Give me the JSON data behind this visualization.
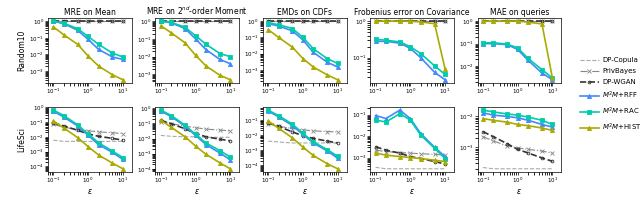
{
  "col_titles_display": [
    "MRE on Mean",
    "MRE on $2^{nd}$-order Moment",
    "EMDs on CDFs",
    "Frobenius error on Covariance",
    "MAE on queries"
  ],
  "col_keys": [
    "MRE on Mean",
    "MRE on 2nd-order Moment",
    "EMDs on CDFs",
    "Frobenius error on Covariance",
    "MAE on queries"
  ],
  "row_labels": [
    "Random10",
    "LifeSci"
  ],
  "legend_entries": [
    "DP-Copula",
    "PrivBayes",
    "DP-WGAN",
    "$M^2M$+RFF",
    "$M^2M$+RAC",
    "$M^2M$+HIST"
  ],
  "line_colors": [
    "#aaaaaa",
    "#888888",
    "#333333",
    "#4488ff",
    "#00ccaa",
    "#aaaa00"
  ],
  "line_styles_base": [
    "--",
    "-.",
    "--",
    "-",
    "-",
    "-"
  ],
  "actual_markers": [
    null,
    "x",
    "o",
    "^",
    "s",
    "^"
  ],
  "marker_sizes": [
    3,
    3,
    2,
    3,
    3,
    3
  ],
  "line_widths": [
    0.8,
    0.8,
    1.2,
    1.2,
    1.2,
    1.2
  ],
  "xlabel": "$\\varepsilon$",
  "eps_values": [
    0.1,
    0.2,
    0.5,
    1.0,
    2.0,
    5.0,
    10.0
  ],
  "data": {
    "Random10": {
      "MRE on Mean": {
        "DP-Copula": [
          1.0,
          1.0,
          1.0,
          1.0,
          1.0,
          1.0,
          1.0
        ],
        "PrivBayes": [
          1.0,
          1.0,
          1.0,
          1.0,
          1.0,
          1.0,
          1.0
        ],
        "DP-WGAN": [
          1.0,
          1.0,
          1.0,
          1.0,
          1.0,
          1.0,
          1.0
        ],
        "M2M+RFF": [
          1.0,
          0.7,
          0.28,
          0.08,
          0.02,
          0.007,
          0.005
        ],
        "M2M+RAC": [
          1.0,
          0.75,
          0.35,
          0.12,
          0.04,
          0.012,
          0.007
        ],
        "M2M+HIST": [
          0.45,
          0.15,
          0.04,
          0.008,
          0.002,
          0.0006,
          0.0003
        ]
      },
      "MRE on 2nd-order Moment": {
        "DP-Copula": [
          1.0,
          1.0,
          1.0,
          1.0,
          1.0,
          1.0,
          1.0
        ],
        "PrivBayes": [
          1.0,
          1.0,
          1.0,
          1.0,
          1.0,
          1.0,
          1.0
        ],
        "DP-WGAN": [
          1.0,
          1.0,
          1.0,
          1.0,
          1.0,
          1.0,
          1.0
        ],
        "M2M+RFF": [
          1.0,
          0.8,
          0.38,
          0.1,
          0.025,
          0.007,
          0.004
        ],
        "M2M+RAC": [
          1.0,
          0.85,
          0.45,
          0.15,
          0.05,
          0.015,
          0.01
        ],
        "M2M+HIST": [
          0.55,
          0.22,
          0.06,
          0.012,
          0.003,
          0.0009,
          0.0005
        ]
      },
      "EMDs on CDFs": {
        "DP-Copula": [
          1.0,
          1.0,
          1.0,
          1.0,
          1.0,
          1.0,
          1.0
        ],
        "PrivBayes": [
          1.0,
          1.0,
          1.0,
          1.0,
          1.0,
          1.0,
          1.0
        ],
        "DP-WGAN": [
          1.0,
          1.0,
          1.0,
          1.0,
          1.0,
          1.0,
          1.0
        ],
        "M2M+RFF": [
          0.7,
          0.5,
          0.25,
          0.07,
          0.012,
          0.003,
          0.0015
        ],
        "M2M+RAC": [
          0.8,
          0.6,
          0.35,
          0.1,
          0.02,
          0.005,
          0.0025
        ],
        "M2M+HIST": [
          0.3,
          0.1,
          0.025,
          0.005,
          0.0015,
          0.0005,
          0.00025
        ]
      },
      "Frobenius error on Covariance": {
        "DP-Copula": [
          1.0,
          1.0,
          1.0,
          1.0,
          1.0,
          1.0,
          1.0
        ],
        "PrivBayes": [
          1.0,
          1.0,
          1.0,
          1.0,
          1.0,
          1.0,
          1.0
        ],
        "DP-WGAN": [
          1.0,
          1.0,
          1.0,
          1.0,
          1.0,
          1.0,
          1.0
        ],
        "M2M+RFF": [
          0.28,
          0.28,
          0.25,
          0.18,
          0.1,
          0.04,
          0.025
        ],
        "M2M+RAC": [
          0.32,
          0.3,
          0.27,
          0.2,
          0.13,
          0.06,
          0.035
        ],
        "M2M+HIST": [
          1.0,
          1.0,
          1.0,
          1.0,
          0.95,
          0.85,
          0.05
        ]
      },
      "MAE on queries": {
        "DP-Copula": [
          1.0,
          1.0,
          1.0,
          1.0,
          1.0,
          1.0,
          1.0
        ],
        "PrivBayes": [
          1.0,
          1.0,
          1.0,
          1.0,
          1.0,
          1.0,
          1.0
        ],
        "DP-WGAN": [
          1.0,
          1.0,
          1.0,
          1.0,
          1.0,
          1.0,
          1.0
        ],
        "M2M+RFF": [
          0.1,
          0.1,
          0.09,
          0.055,
          0.018,
          0.005,
          0.0025
        ],
        "M2M+RAC": [
          0.11,
          0.11,
          0.095,
          0.065,
          0.022,
          0.007,
          0.003
        ],
        "M2M+HIST": [
          1.0,
          1.0,
          1.0,
          1.0,
          0.9,
          0.75,
          0.003
        ]
      }
    },
    "LifeSci": {
      "MRE on Mean": {
        "DP-Copula": [
          0.006,
          0.005,
          0.005,
          0.005,
          0.005,
          0.005,
          0.005
        ],
        "PrivBayes": [
          0.07,
          0.045,
          0.032,
          0.026,
          0.022,
          0.019,
          0.017
        ],
        "DP-WGAN": [
          0.09,
          0.055,
          0.028,
          0.016,
          0.011,
          0.008,
          0.006
        ],
        "M2M+RFF": [
          0.55,
          0.22,
          0.055,
          0.013,
          0.003,
          0.0009,
          0.0003
        ],
        "M2M+RAC": [
          0.65,
          0.28,
          0.065,
          0.016,
          0.004,
          0.0011,
          0.0004
        ],
        "M2M+HIST": [
          0.12,
          0.04,
          0.009,
          0.0022,
          0.0006,
          0.00017,
          7e-05
        ]
      },
      "MRE on 2nd-order Moment": {
        "DP-Copula": [
          0.016,
          0.014,
          0.013,
          0.013,
          0.012,
          0.012,
          0.012
        ],
        "PrivBayes": [
          0.13,
          0.095,
          0.065,
          0.052,
          0.042,
          0.036,
          0.032
        ],
        "DP-WGAN": [
          0.16,
          0.095,
          0.044,
          0.022,
          0.013,
          0.009,
          0.007
        ],
        "M2M+RFF": [
          0.65,
          0.28,
          0.065,
          0.016,
          0.004,
          0.0011,
          0.0004
        ],
        "M2M+RAC": [
          0.75,
          0.33,
          0.075,
          0.019,
          0.005,
          0.0016,
          0.0006
        ],
        "M2M+HIST": [
          0.16,
          0.055,
          0.013,
          0.0032,
          0.0009,
          0.00025,
          0.0001
        ]
      },
      "EMDs on CDFs": {
        "DP-Copula": [
          0.004,
          0.0035,
          0.003,
          0.003,
          0.003,
          0.003,
          0.003
        ],
        "PrivBayes": [
          0.055,
          0.038,
          0.027,
          0.022,
          0.019,
          0.017,
          0.016
        ],
        "DP-WGAN": [
          0.065,
          0.038,
          0.016,
          0.009,
          0.006,
          0.004,
          0.003
        ],
        "M2M+RFF": [
          0.38,
          0.16,
          0.042,
          0.011,
          0.003,
          0.0009,
          0.0003
        ],
        "M2M+RAC": [
          0.44,
          0.19,
          0.052,
          0.013,
          0.0035,
          0.0011,
          0.0004
        ],
        "M2M+HIST": [
          0.085,
          0.028,
          0.0065,
          0.0016,
          0.00045,
          0.00013,
          6e-05
        ]
      },
      "Frobenius error on Covariance": {
        "DP-Copula": [
          0.00035,
          0.0003,
          0.0003,
          0.0003,
          0.0003,
          0.0003,
          0.0003
        ],
        "PrivBayes": [
          0.0022,
          0.0019,
          0.0017,
          0.0016,
          0.0015,
          0.0014,
          0.0013
        ],
        "DP-WGAN": [
          0.0032,
          0.0022,
          0.0016,
          0.0011,
          0.0009,
          0.00065,
          0.0005
        ],
        "M2M+RFF": [
          0.09,
          0.065,
          0.16,
          0.065,
          0.013,
          0.003,
          0.0011
        ],
        "M2M+RAC": [
          0.055,
          0.045,
          0.11,
          0.055,
          0.011,
          0.0027,
          0.0009
        ],
        "M2M+HIST": [
          0.0016,
          0.0013,
          0.0011,
          0.001,
          0.0009,
          0.00075,
          0.00065
        ]
      },
      "MAE on queries": {
        "DP-Copula": [
          0.00022,
          0.0002,
          0.0002,
          0.0002,
          0.0002,
          0.0002,
          0.0002
        ],
        "PrivBayes": [
          0.0022,
          0.0016,
          0.0011,
          0.00095,
          0.00085,
          0.00075,
          0.00065
        ],
        "DP-WGAN": [
          0.0032,
          0.0022,
          0.0013,
          0.00085,
          0.00065,
          0.00045,
          0.00035
        ],
        "M2M+RFF": [
          0.013,
          0.011,
          0.01,
          0.009,
          0.0075,
          0.0055,
          0.0045
        ],
        "M2M+RAC": [
          0.016,
          0.014,
          0.012,
          0.011,
          0.0095,
          0.0075,
          0.0055
        ],
        "M2M+HIST": [
          0.0085,
          0.0075,
          0.0065,
          0.0055,
          0.005,
          0.0042,
          0.0035
        ]
      }
    }
  }
}
